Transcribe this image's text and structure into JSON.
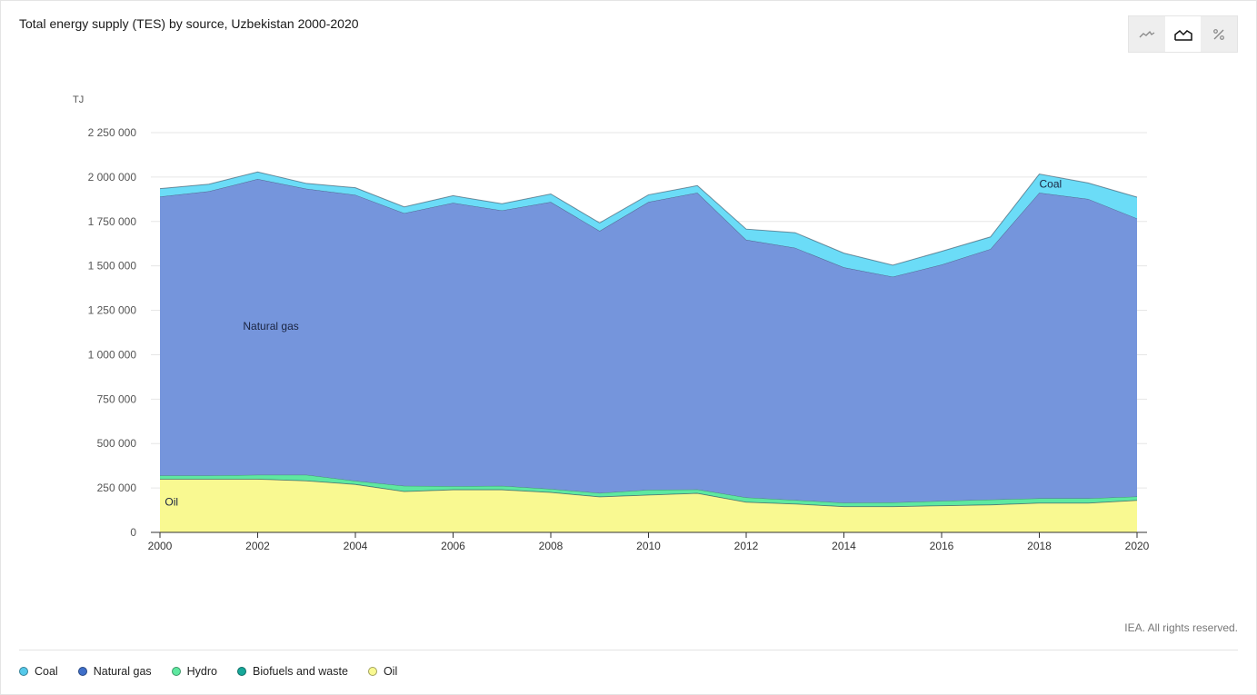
{
  "title": "Total energy supply (TES) by source, Uzbekistan 2000-2020",
  "toolbar": {
    "buttons": [
      {
        "icon": "line-chart-icon",
        "active": false
      },
      {
        "icon": "area-chart-icon",
        "active": true
      },
      {
        "icon": "percent-icon",
        "active": false
      }
    ]
  },
  "credit": "IEA. All rights reserved.",
  "chart_data": {
    "type": "area",
    "stacked": true,
    "ylabel": "TJ",
    "ylim": [
      0,
      2250000
    ],
    "yticks": [
      0,
      250000,
      500000,
      750000,
      1000000,
      1250000,
      1500000,
      1750000,
      2000000,
      2250000
    ],
    "ytick_labels": [
      "0",
      "250 000",
      "500 000",
      "750 000",
      "1 000 000",
      "1 250 000",
      "1 500 000",
      "1 750 000",
      "2 000 000",
      "2 250 000"
    ],
    "xlim": [
      2000,
      2020
    ],
    "xticks": [
      2000,
      2002,
      2004,
      2006,
      2008,
      2010,
      2012,
      2014,
      2016,
      2018,
      2020
    ],
    "x": [
      2000,
      2001,
      2002,
      2003,
      2004,
      2005,
      2006,
      2007,
      2008,
      2009,
      2010,
      2011,
      2012,
      2013,
      2014,
      2015,
      2016,
      2017,
      2018,
      2019,
      2020
    ],
    "grid": true,
    "legend_position": "bottom",
    "series": [
      {
        "name": "Oil",
        "color": "#f9f991",
        "values": [
          300000,
          300000,
          300000,
          290000,
          270000,
          230000,
          240000,
          240000,
          225000,
          200000,
          210000,
          220000,
          170000,
          160000,
          145000,
          145000,
          150000,
          155000,
          165000,
          165000,
          180000
        ]
      },
      {
        "name": "Biofuels and waste",
        "color": "#1fb8a8",
        "values": [
          2000,
          2000,
          2000,
          2000,
          2000,
          2000,
          2000,
          2000,
          2000,
          2000,
          2000,
          2000,
          2000,
          2000,
          2000,
          2000,
          2000,
          2000,
          2000,
          2000,
          2000
        ]
      },
      {
        "name": "Hydro",
        "color": "#5ee8a0",
        "values": [
          18000,
          18000,
          22000,
          32000,
          18000,
          30000,
          18000,
          20000,
          18000,
          20000,
          28000,
          20000,
          25000,
          20000,
          20000,
          22000,
          25000,
          28000,
          25000,
          25000,
          20000
        ]
      },
      {
        "name": "Natural gas",
        "color": "#7595dc",
        "values": [
          1570000,
          1600000,
          1665000,
          1610000,
          1610000,
          1535000,
          1595000,
          1550000,
          1615000,
          1475000,
          1620000,
          1670000,
          1450000,
          1420000,
          1325000,
          1270000,
          1330000,
          1410000,
          1720000,
          1685000,
          1565000
        ]
      },
      {
        "name": "Coal",
        "color": "#6bdcf7",
        "values": [
          45000,
          40000,
          40000,
          30000,
          40000,
          35000,
          40000,
          38000,
          45000,
          45000,
          40000,
          40000,
          60000,
          85000,
          80000,
          65000,
          75000,
          68000,
          105000,
          90000,
          120000
        ]
      }
    ],
    "annotations": [
      {
        "text": "Natural gas",
        "x": 2001.7,
        "y": 1140000
      },
      {
        "text": "Oil",
        "x": 2000.1,
        "y": 150000
      },
      {
        "text": "Coal",
        "x": 2018.0,
        "y": 1940000
      }
    ]
  },
  "legend": [
    {
      "label": "Coal",
      "color": "#55c9ea"
    },
    {
      "label": "Natural gas",
      "color": "#3f6fc9"
    },
    {
      "label": "Hydro",
      "color": "#5ee8a0"
    },
    {
      "label": "Biofuels and waste",
      "color": "#16a89a"
    },
    {
      "label": "Oil",
      "color": "#f9f991"
    }
  ]
}
